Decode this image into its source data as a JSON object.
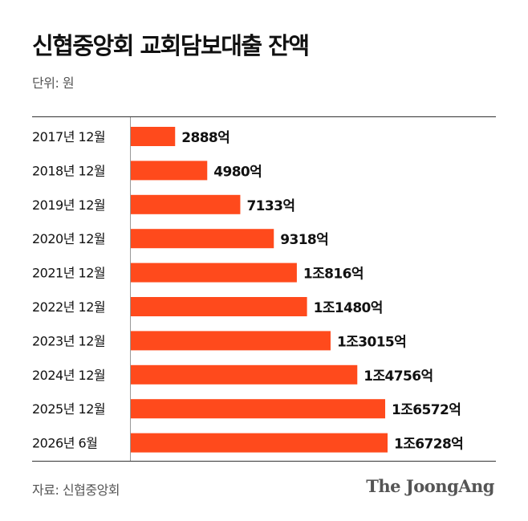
{
  "header": {
    "title": "신협중앙회 교회담보대출 잔액",
    "unit": "단위: 원"
  },
  "footer": {
    "source": "자료: 신협중앙회",
    "brand": "The JoongAng"
  },
  "colors": {
    "bar": "#FF4A1C",
    "text": "#111111",
    "muted": "#555555"
  },
  "chart_data": {
    "type": "bar",
    "orientation": "horizontal",
    "categories": [
      "2017년 12월",
      "2018년 12월",
      "2019년 12월",
      "2020년 12월",
      "2021년 12월",
      "2022년 12월",
      "2023년 12월",
      "2024년 12월",
      "2025년 12월",
      "2026년 6월"
    ],
    "series": [
      {
        "values": [
          2888,
          4980,
          7133,
          9318,
          10816,
          11480,
          13015,
          14756,
          16572,
          16728
        ]
      }
    ],
    "value_labels": [
      "2888억",
      "4980억",
      "7133억",
      "9318억",
      "1조816억",
      "1조1480억",
      "1조3015억",
      "1조4756억",
      "1조6572억",
      "1조6728억"
    ],
    "unit": "억 원",
    "grid": false,
    "legend": "none"
  }
}
